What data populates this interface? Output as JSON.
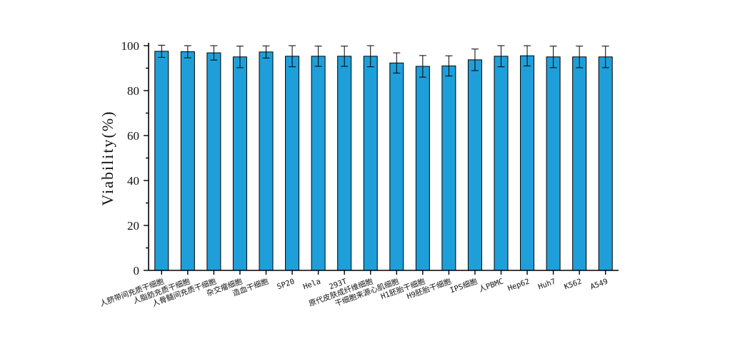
{
  "chart_data": {
    "type": "bar",
    "title": "",
    "xlabel": "",
    "ylabel": "Viability(%)",
    "ylim": [
      0,
      100
    ],
    "yticks": [
      0,
      20,
      40,
      60,
      80,
      100
    ],
    "grid": false,
    "legend": "none",
    "colors": {
      "bar": "#1f9fd9",
      "outline": "#000000",
      "background": "#ffffff"
    },
    "categories": [
      "人脐带间充质干细胞",
      "人脂肪充质干细胞",
      "人骨髓间充质干细胞",
      "杂交瘤细胞",
      "造血干细胞",
      "SP20",
      "Hela",
      "293T",
      "原代皮肤成纤维细胞",
      "干细胞来源心肌细胞",
      "H1胚胎干细胞",
      "H9胚胎干细胞",
      "IPS细胞",
      "人PBMC",
      "Hep62",
      "Huh7",
      "K562",
      "A549"
    ],
    "values": [
      97.5,
      97.3,
      96.8,
      95.0,
      97.2,
      95.3,
      95.3,
      95.3,
      95.3,
      92.3,
      90.8,
      91.0,
      93.7,
      95.3,
      95.5,
      95.0,
      95.0,
      95.0
    ],
    "errors": [
      2.7,
      2.7,
      3.2,
      4.8,
      2.7,
      4.7,
      4.5,
      4.5,
      4.7,
      4.5,
      4.8,
      4.5,
      4.8,
      4.7,
      4.5,
      4.8,
      4.8,
      4.8
    ]
  }
}
